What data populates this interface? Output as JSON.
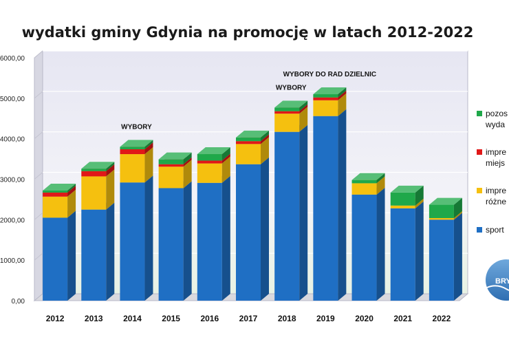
{
  "chart_data": {
    "type": "bar",
    "stacked": true,
    "title": "wydatki gminy Gdynia na promocję w latach 2012-2022",
    "categories": [
      "2012",
      "2013",
      "2014",
      "2015",
      "2016",
      "2017",
      "2018",
      "2019",
      "2020",
      "2021",
      "2022"
    ],
    "series": [
      {
        "name": "sport",
        "color": "#1f6fc4",
        "values": [
          2050000,
          2250000,
          2920000,
          2780000,
          2910000,
          3370000,
          4170000,
          4560000,
          2620000,
          2280000,
          2000000
        ]
      },
      {
        "name": "impre różne",
        "color": "#f5c00f",
        "values": [
          520000,
          820000,
          700000,
          530000,
          480000,
          500000,
          450000,
          390000,
          280000,
          70000,
          40000
        ]
      },
      {
        "name": "impre miejs",
        "color": "#e01818",
        "values": [
          100000,
          130000,
          120000,
          60000,
          70000,
          70000,
          60000,
          70000,
          0,
          0,
          0
        ]
      },
      {
        "name": "pozos wyda",
        "color": "#1fa84a",
        "values": [
          50000,
          60000,
          60000,
          120000,
          160000,
          90000,
          90000,
          80000,
          80000,
          320000,
          330000
        ]
      }
    ],
    "y_tick_labels": [
      "0,00",
      "1000,00",
      "2000,00",
      "3000,00",
      "4000,00",
      "5000,00",
      "6000,00"
    ],
    "ylim": [
      0,
      6000000
    ],
    "grid": true,
    "legend": "right",
    "annotations": [
      {
        "category": "2014",
        "text": "WYBORY"
      },
      {
        "category": "2018",
        "text": "WYBORY"
      },
      {
        "category": "2019",
        "text": "WYBORY DO RAD DZIELNIC"
      }
    ]
  },
  "legend_items": [
    {
      "line1": "pozos",
      "line2": "wyda",
      "color": "#1fa84a"
    },
    {
      "line1": "impre",
      "line2": "miejs",
      "color": "#e01818"
    },
    {
      "line1": "impre",
      "line2": "różne",
      "color": "#f5c00f"
    },
    {
      "line1": "sport",
      "line2": "",
      "color": "#1f6fc4"
    }
  ],
  "logo_text": "BRY"
}
